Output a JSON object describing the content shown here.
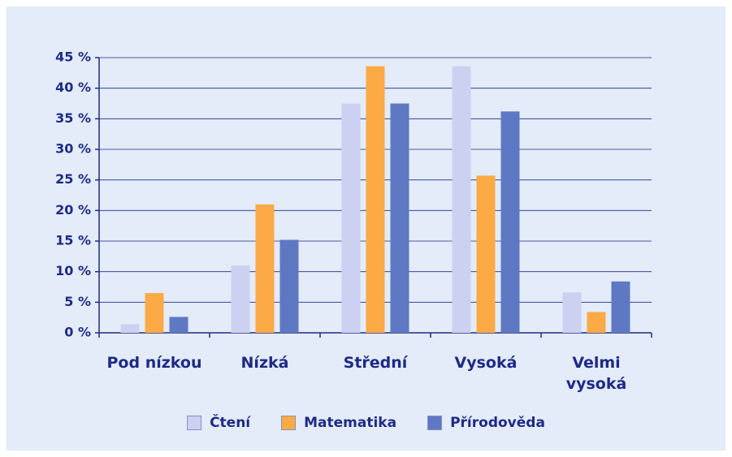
{
  "chart_data": {
    "type": "bar",
    "categories": [
      "Pod nízkou",
      "Nízká",
      "Střední",
      "Vysoká",
      "Velmi vysoká"
    ],
    "series": [
      {
        "name": "Čtení",
        "color": "#cdd1f1",
        "values": [
          1.4,
          11,
          37.5,
          43.6,
          6.6
        ]
      },
      {
        "name": "Matematika",
        "color": "#fbaa45",
        "values": [
          6.5,
          21,
          43.6,
          25.7,
          3.4
        ]
      },
      {
        "name": "Přírodověda",
        "color": "#5f78c3",
        "values": [
          2.6,
          15.2,
          37.5,
          36.2,
          8.4
        ]
      }
    ],
    "ylim": [
      0,
      45
    ],
    "yticks": [
      {
        "value": 0,
        "label": "0 %"
      },
      {
        "value": 5,
        "label": "5 %"
      },
      {
        "value": 10,
        "label": "10 %"
      },
      {
        "value": 15,
        "label": "15 %"
      },
      {
        "value": 20,
        "label": "20 %"
      },
      {
        "value": 25,
        "label": "25 %"
      },
      {
        "value": 30,
        "label": "30 %"
      },
      {
        "value": 35,
        "label": "35 %"
      },
      {
        "value": 40,
        "label": "40 %"
      },
      {
        "value": 45,
        "label": "45 %"
      }
    ],
    "grid": true,
    "legend": "bottom"
  }
}
